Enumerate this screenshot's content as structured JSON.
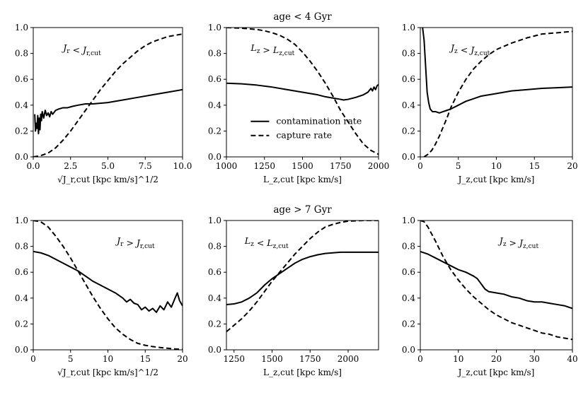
{
  "chart_data": {
    "type": "line",
    "row_titles": [
      "age < 4 Gyr",
      "age > 7 Gyr"
    ],
    "legend": {
      "placement": "center-right",
      "panel": 2,
      "entries": [
        {
          "label": "contamination rate",
          "style": "solid"
        },
        {
          "label": "capture rate",
          "style": "dashed"
        }
      ]
    },
    "panels": [
      {
        "annotation": "J_r < J_r,cut",
        "xlabel": "√J_r,cut [kpc km/s]^1/2",
        "ylabel": "",
        "xlim": [
          0,
          10
        ],
        "ylim": [
          0,
          1
        ],
        "xticks": [
          0.0,
          2.5,
          5.0,
          7.5,
          10.0
        ],
        "xtick_labels": [
          "0.0",
          "2.5",
          "5.0",
          "7.5",
          "10.0"
        ],
        "yticks": [
          0.0,
          0.2,
          0.4,
          0.6,
          0.8,
          1.0
        ],
        "ytick_labels": [
          "0.0",
          "0.2",
          "0.4",
          "0.6",
          "0.8",
          "1.0"
        ],
        "series": [
          {
            "name": "contamination rate",
            "style": "solid",
            "x": [
              0.1,
              0.15,
              0.2,
              0.25,
              0.3,
              0.35,
              0.4,
              0.45,
              0.5,
              0.55,
              0.6,
              0.7,
              0.8,
              0.9,
              1.0,
              1.1,
              1.2,
              1.3,
              1.5,
              1.7,
              2.0,
              2.3,
              2.6,
              3.0,
              3.5,
              4.0,
              5.0,
              6.0,
              7.0,
              8.0,
              9.0,
              10.0
            ],
            "y": [
              0.33,
              0.2,
              0.26,
              0.22,
              0.32,
              0.18,
              0.3,
              0.21,
              0.33,
              0.28,
              0.35,
              0.3,
              0.36,
              0.32,
              0.34,
              0.31,
              0.35,
              0.33,
              0.36,
              0.37,
              0.38,
              0.38,
              0.39,
              0.4,
              0.41,
              0.41,
              0.42,
              0.44,
              0.46,
              0.48,
              0.5,
              0.52
            ]
          },
          {
            "name": "capture rate",
            "style": "dashed",
            "x": [
              0.0,
              0.5,
              1.0,
              1.5,
              2.0,
              2.5,
              3.0,
              3.5,
              4.0,
              4.5,
              5.0,
              5.5,
              6.0,
              6.5,
              7.0,
              7.5,
              8.0,
              8.5,
              9.0,
              9.5,
              10.0
            ],
            "y": [
              0.0,
              0.01,
              0.03,
              0.07,
              0.13,
              0.2,
              0.28,
              0.36,
              0.44,
              0.52,
              0.59,
              0.66,
              0.72,
              0.77,
              0.82,
              0.86,
              0.89,
              0.91,
              0.93,
              0.94,
              0.95
            ]
          }
        ]
      },
      {
        "annotation": "L_z > L_z,cut",
        "xlabel": "L_z,cut [kpc km/s]",
        "ylabel": "",
        "xlim": [
          1000,
          2000
        ],
        "ylim": [
          0,
          1
        ],
        "xticks": [
          1000,
          1250,
          1500,
          1750,
          2000
        ],
        "xtick_labels": [
          "1000",
          "1250",
          "1500",
          "1750",
          "2000"
        ],
        "yticks": [
          0.0,
          0.2,
          0.4,
          0.6,
          0.8,
          1.0
        ],
        "ytick_labels": [
          "0.0",
          "0.2",
          "0.4",
          "0.6",
          "0.8",
          "1.0"
        ],
        "series": [
          {
            "name": "contamination rate",
            "style": "solid",
            "x": [
              1000,
              1100,
              1200,
              1300,
              1400,
              1500,
              1600,
              1650,
              1700,
              1750,
              1770,
              1800,
              1850,
              1900,
              1930,
              1950,
              1960,
              1970,
              1980,
              1990,
              2000
            ],
            "y": [
              0.57,
              0.565,
              0.555,
              0.54,
              0.52,
              0.5,
              0.48,
              0.465,
              0.455,
              0.445,
              0.44,
              0.445,
              0.46,
              0.48,
              0.5,
              0.53,
              0.51,
              0.54,
              0.52,
              0.55,
              0.56
            ]
          },
          {
            "name": "capture rate",
            "style": "dashed",
            "x": [
              1000,
              1100,
              1200,
              1250,
              1300,
              1350,
              1400,
              1450,
              1500,
              1550,
              1600,
              1650,
              1700,
              1750,
              1800,
              1850,
              1900,
              1950,
              2000
            ],
            "y": [
              1.0,
              0.995,
              0.985,
              0.975,
              0.96,
              0.94,
              0.91,
              0.87,
              0.81,
              0.74,
              0.66,
              0.57,
              0.47,
              0.36,
              0.27,
              0.18,
              0.1,
              0.05,
              0.02
            ]
          }
        ]
      },
      {
        "annotation": "J_z < J_z,cut",
        "xlabel": "J_z,cut [kpc km/s]",
        "ylabel": "",
        "xlim": [
          0,
          20
        ],
        "ylim": [
          0,
          1
        ],
        "xticks": [
          0,
          5,
          10,
          15,
          20
        ],
        "xtick_labels": [
          "0",
          "5",
          "10",
          "15",
          "20"
        ],
        "yticks": [
          0.0,
          0.2,
          0.4,
          0.6,
          0.8,
          1.0
        ],
        "ytick_labels": [
          "0.0",
          "0.2",
          "0.4",
          "0.6",
          "0.8",
          "1.0"
        ],
        "series": [
          {
            "name": "contamination rate",
            "style": "solid",
            "x": [
              0.3,
              0.5,
              0.7,
              0.9,
              1.1,
              1.3,
              1.6,
              2.0,
              2.5,
              3.0,
              3.5,
              4.0,
              5.0,
              6.0,
              7.0,
              8.0,
              10.0,
              12.0,
              14.0,
              16.0,
              18.0,
              20.0
            ],
            "y": [
              1.0,
              0.9,
              0.7,
              0.5,
              0.42,
              0.37,
              0.35,
              0.35,
              0.34,
              0.35,
              0.36,
              0.37,
              0.4,
              0.43,
              0.45,
              0.47,
              0.49,
              0.51,
              0.52,
              0.53,
              0.535,
              0.54
            ]
          },
          {
            "name": "capture rate",
            "style": "dashed",
            "x": [
              0.5,
              1.0,
              1.5,
              2.0,
              2.5,
              3.0,
              3.5,
              4.0,
              5.0,
              6.0,
              7.0,
              8.0,
              9.0,
              10.0,
              12.0,
              14.0,
              16.0,
              18.0,
              20.0
            ],
            "y": [
              0.0,
              0.02,
              0.05,
              0.1,
              0.16,
              0.23,
              0.3,
              0.38,
              0.5,
              0.6,
              0.68,
              0.74,
              0.79,
              0.83,
              0.88,
              0.92,
              0.95,
              0.96,
              0.97
            ]
          }
        ]
      },
      {
        "annotation": "J_r > J_r,cut",
        "xlabel": "√J_r,cut [kpc km/s]^1/2",
        "ylabel": "",
        "xlim": [
          0,
          20
        ],
        "ylim": [
          0,
          1
        ],
        "xticks": [
          0,
          5,
          10,
          15,
          20
        ],
        "xtick_labels": [
          "0",
          "5",
          "10",
          "15",
          "20"
        ],
        "yticks": [
          0.0,
          0.2,
          0.4,
          0.6,
          0.8,
          1.0
        ],
        "ytick_labels": [
          "0.0",
          "0.2",
          "0.4",
          "0.6",
          "0.8",
          "1.0"
        ],
        "series": [
          {
            "name": "contamination rate",
            "style": "solid",
            "x": [
              0,
              1,
              2,
              3,
              4,
              5,
              6,
              7,
              8,
              9,
              10,
              11,
              12,
              12.5,
              13,
              13.5,
              14,
              14.5,
              15,
              15.5,
              16,
              16.5,
              17,
              17.5,
              18,
              18.5,
              19,
              19.3,
              19.6,
              20
            ],
            "y": [
              0.76,
              0.75,
              0.73,
              0.7,
              0.67,
              0.64,
              0.61,
              0.57,
              0.53,
              0.5,
              0.47,
              0.44,
              0.4,
              0.37,
              0.39,
              0.36,
              0.35,
              0.31,
              0.33,
              0.3,
              0.32,
              0.29,
              0.34,
              0.31,
              0.37,
              0.33,
              0.4,
              0.44,
              0.38,
              0.34
            ]
          },
          {
            "name": "capture rate",
            "style": "dashed",
            "x": [
              0,
              1,
              2,
              3,
              4,
              5,
              6,
              7,
              8,
              9,
              10,
              11,
              12,
              13,
              14,
              15,
              16,
              17,
              18,
              19,
              20
            ],
            "y": [
              1.0,
              0.99,
              0.95,
              0.88,
              0.8,
              0.71,
              0.61,
              0.51,
              0.41,
              0.32,
              0.24,
              0.17,
              0.12,
              0.08,
              0.05,
              0.035,
              0.025,
              0.018,
              0.012,
              0.007,
              0.004
            ]
          }
        ]
      },
      {
        "annotation": "L_z < L_z,cut",
        "xlabel": "L_z,cut [kpc km/s]",
        "ylabel": "",
        "xlim": [
          1200,
          2200
        ],
        "ylim": [
          0,
          1
        ],
        "xticks": [
          1250,
          1500,
          1750,
          2000
        ],
        "xtick_labels": [
          "1250",
          "1500",
          "1750",
          "2000"
        ],
        "yticks": [
          0.0,
          0.2,
          0.4,
          0.6,
          0.8,
          1.0
        ],
        "ytick_labels": [
          "0.0",
          "0.2",
          "0.4",
          "0.6",
          "0.8",
          "1.0"
        ],
        "series": [
          {
            "name": "contamination rate",
            "style": "solid",
            "x": [
              1200,
              1250,
              1300,
              1350,
              1400,
              1450,
              1500,
              1550,
              1600,
              1650,
              1700,
              1750,
              1800,
              1850,
              1900,
              1950,
              2000,
              2100,
              2200
            ],
            "y": [
              0.35,
              0.355,
              0.37,
              0.4,
              0.44,
              0.5,
              0.55,
              0.59,
              0.63,
              0.67,
              0.7,
              0.72,
              0.735,
              0.745,
              0.75,
              0.755,
              0.755,
              0.755,
              0.755
            ]
          },
          {
            "name": "capture rate",
            "style": "dashed",
            "x": [
              1200,
              1250,
              1300,
              1350,
              1400,
              1450,
              1500,
              1550,
              1600,
              1650,
              1700,
              1750,
              1800,
              1850,
              1900,
              1950,
              2000,
              2100,
              2200
            ],
            "y": [
              0.14,
              0.19,
              0.24,
              0.3,
              0.37,
              0.45,
              0.53,
              0.6,
              0.67,
              0.74,
              0.8,
              0.86,
              0.91,
              0.95,
              0.97,
              0.985,
              0.995,
              1.0,
              1.0
            ]
          }
        ]
      },
      {
        "annotation": "J_z > J_z,cut",
        "xlabel": "J_z,cut [kpc km/s]",
        "ylabel": "",
        "xlim": [
          0,
          40
        ],
        "ylim": [
          0,
          1
        ],
        "xticks": [
          0,
          10,
          20,
          30,
          40
        ],
        "xtick_labels": [
          "0",
          "10",
          "20",
          "30",
          "40"
        ],
        "yticks": [
          0.0,
          0.2,
          0.4,
          0.6,
          0.8,
          1.0
        ],
        "ytick_labels": [
          "0.0",
          "0.2",
          "0.4",
          "0.6",
          "0.8",
          "1.0"
        ],
        "series": [
          {
            "name": "contamination rate",
            "style": "solid",
            "x": [
              0,
              2,
              4,
              6,
              8,
              10,
              12,
              14,
              15,
              16,
              17,
              18,
              20,
              22,
              24,
              26,
              28,
              30,
              32,
              34,
              36,
              38,
              40
            ],
            "y": [
              0.76,
              0.74,
              0.71,
              0.68,
              0.65,
              0.62,
              0.6,
              0.57,
              0.55,
              0.51,
              0.47,
              0.45,
              0.44,
              0.43,
              0.41,
              0.4,
              0.38,
              0.37,
              0.37,
              0.36,
              0.35,
              0.34,
              0.32
            ]
          },
          {
            "name": "capture rate",
            "style": "dashed",
            "x": [
              0,
              1,
              2,
              4,
              6,
              8,
              10,
              12,
              14,
              16,
              18,
              20,
              22,
              24,
              26,
              28,
              30,
              32,
              34,
              36,
              38,
              40
            ],
            "y": [
              1.0,
              0.99,
              0.95,
              0.84,
              0.72,
              0.62,
              0.54,
              0.47,
              0.41,
              0.36,
              0.31,
              0.27,
              0.24,
              0.21,
              0.19,
              0.17,
              0.15,
              0.13,
              0.12,
              0.1,
              0.09,
              0.08
            ]
          }
        ]
      }
    ]
  }
}
